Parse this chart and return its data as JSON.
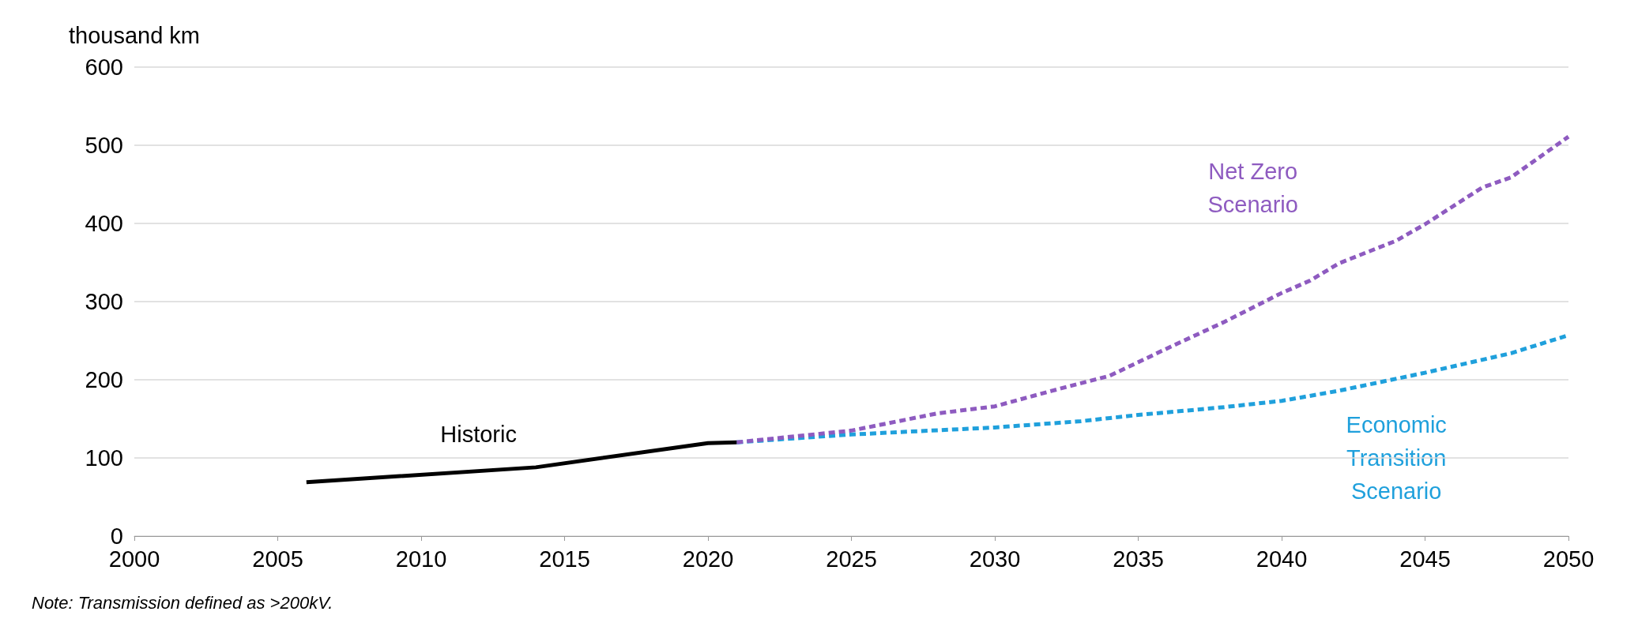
{
  "chart_data": {
    "type": "line",
    "ylabel": "thousand km",
    "xlim": [
      2000,
      2050
    ],
    "xticks": [
      2000,
      2005,
      2010,
      2015,
      2020,
      2025,
      2030,
      2035,
      2040,
      2045,
      2050
    ],
    "ylim": [
      0,
      600
    ],
    "yticks": [
      0,
      100,
      200,
      300,
      400,
      500,
      600
    ],
    "grid": "y",
    "legend": false,
    "marker": "none",
    "series": [
      {
        "name": "Historic",
        "color": "#000000",
        "line_style": "solid",
        "x": [
          2006,
          2014,
          2020,
          2021
        ],
        "values": [
          69,
          88,
          119,
          120
        ]
      },
      {
        "name": "Net Zero\nScenario",
        "color": "#8e5bc0",
        "line_style": "dashed",
        "x": [
          2021,
          2025,
          2028,
          2030,
          2032,
          2034,
          2036,
          2038,
          2040,
          2041,
          2042,
          2044,
          2045,
          2047,
          2048,
          2050
        ],
        "values": [
          120,
          135,
          157,
          166,
          186,
          205,
          240,
          274,
          311,
          327,
          349,
          378,
          399,
          446,
          459,
          511
        ]
      },
      {
        "name": "Economic\nTransition\nScenario",
        "color": "#1fa0dc",
        "line_style": "dashed",
        "x": [
          2021,
          2025,
          2030,
          2033,
          2035,
          2038,
          2040,
          2042,
          2045,
          2048,
          2050
        ],
        "values": [
          120,
          130,
          139,
          147,
          155,
          165,
          173,
          186,
          209,
          234,
          257
        ]
      }
    ],
    "annotations": [
      "Note: Transmission defined as >200kV."
    ]
  }
}
